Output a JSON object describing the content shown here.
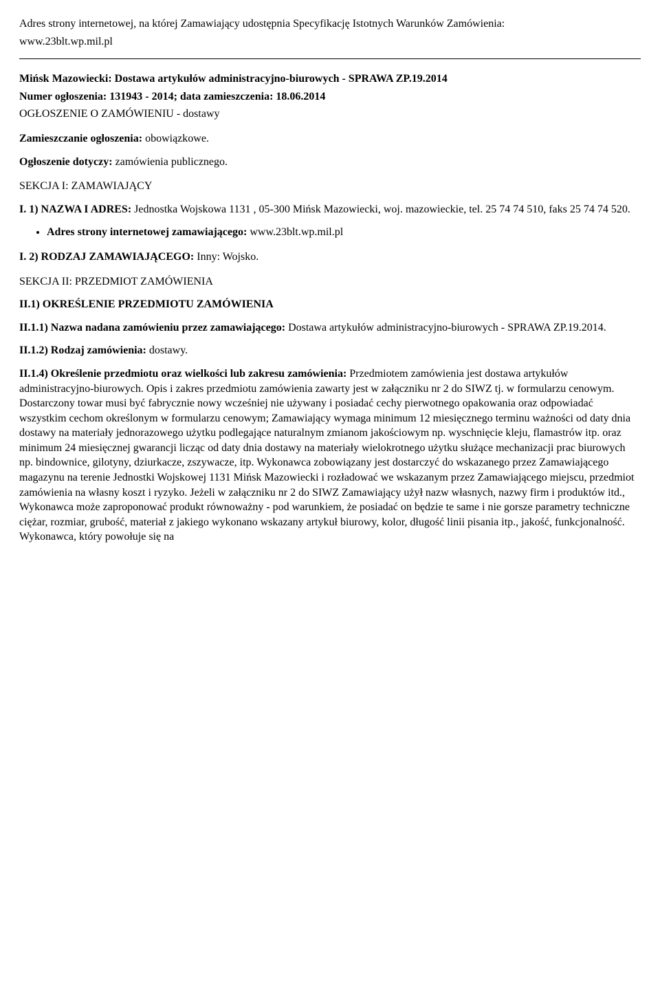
{
  "intro": {
    "line1": "Adres strony internetowej, na której Zamawiający udostępnia Specyfikację Istotnych Warunków Zamówienia:",
    "url": "www.23blt.wp.mil.pl"
  },
  "header": {
    "title_line1": "Mińsk Mazowiecki: Dostawa artykułów administracyjno-biurowych - SPRAWA ZP.19.2014",
    "title_line2": "Numer ogłoszenia: 131943 - 2014; data zamieszczenia: 18.06.2014",
    "subtitle": "OGŁOSZENIE O ZAMÓWIENIU - dostawy"
  },
  "meta": {
    "zamieszczanie_label": "Zamieszczanie ogłoszenia:",
    "zamieszczanie_value": " obowiązkowe.",
    "dotyczy_label": "Ogłoszenie dotyczy:",
    "dotyczy_value": " zamówienia publicznego."
  },
  "sekcja1": {
    "title": "SEKCJA I: ZAMAWIAJĄCY",
    "i1_label": "I. 1) NAZWA I ADRES:",
    "i1_value": " Jednostka Wojskowa 1131 , 05-300 Mińsk Mazowiecki, woj. mazowieckie, tel. 25 74 74 510, faks 25 74 74 520.",
    "bullet_label": "Adres strony internetowej zamawiającego:",
    "bullet_value": " www.23blt.wp.mil.pl",
    "i2_label": "I. 2) RODZAJ ZAMAWIAJĄCEGO:",
    "i2_value": " Inny: Wojsko."
  },
  "sekcja2": {
    "title": "SEKCJA II: PRZEDMIOT ZAMÓWIENIA",
    "ii1_title": "II.1) OKREŚLENIE PRZEDMIOTU ZAMÓWIENIA",
    "ii11_label": "II.1.1) Nazwa nadana zamówieniu przez zamawiającego:",
    "ii11_value": " Dostawa artykułów administracyjno-biurowych - SPRAWA ZP.19.2014.",
    "ii12_label": "II.1.2) Rodzaj zamówienia:",
    "ii12_value": " dostawy.",
    "ii14_label": "II.1.4) Określenie przedmiotu oraz wielkości lub zakresu zamówienia:",
    "ii14_value": " Przedmiotem zamówienia jest dostawa artykułów administracyjno-biurowych. Opis i zakres przedmiotu zamówienia zawarty jest w załączniku nr 2 do SIWZ tj. w formularzu cenowym. Dostarczony towar musi być fabrycznie nowy wcześniej nie używany i posiadać cechy pierwotnego opakowania oraz odpowiadać wszystkim cechom określonym w formularzu cenowym; Zamawiający wymaga minimum 12 miesięcznego terminu ważności od daty dnia dostawy na materiały jednorazowego użytku podlegające naturalnym zmianom jakościowym np. wyschnięcie kleju, flamastrów itp. oraz minimum 24 miesięcznej gwarancji licząc od daty dnia dostawy na materiały wielokrotnego użytku służące mechanizacji prac biurowych np. bindownice, gilotyny, dziurkacze, zszywacze, itp. Wykonawca zobowiązany jest dostarczyć do wskazanego przez Zamawiającego magazynu na terenie Jednostki Wojskowej 1131 Mińsk Mazowiecki i rozładować we wskazanym przez Zamawiającego miejscu, przedmiot zamówienia na własny koszt i ryzyko. Jeżeli w załączniku nr 2 do SIWZ Zamawiający użył nazw własnych, nazwy firm i produktów itd., Wykonawca może zaproponować produkt równoważny - pod warunkiem, że posiadać on będzie te same i nie gorsze parametry techniczne ciężar, rozmiar, grubość, materiał z jakiego wykonano wskazany artykuł biurowy, kolor, długość linii pisania itp., jakość, funkcjonalność. Wykonawca, który powołuje się na"
  }
}
